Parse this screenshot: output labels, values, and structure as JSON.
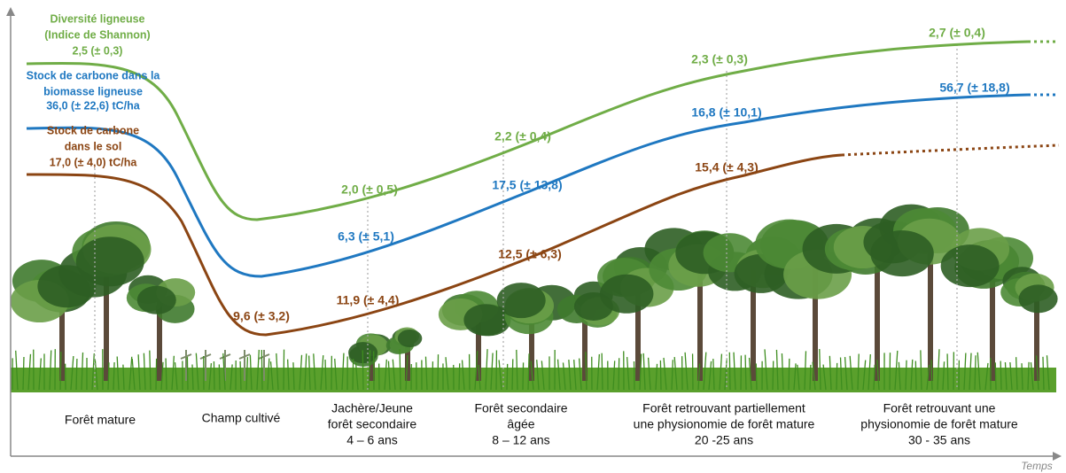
{
  "series": [
    {
      "title": [
        "Diversité ligneuse",
        "(Indice de Shannon)"
      ],
      "color": "#70ad47",
      "labels": [
        "2,5 (± 0,3)",
        "2,0 (± 0,5)",
        "2,2 (± 0,4)",
        "2,3 (± 0,3)",
        "2,7 (± 0,4)"
      ]
    },
    {
      "title": [
        "Stock de carbone dans la",
        "biomasse ligneuse"
      ],
      "color": "#1f78c1",
      "labels": [
        "36,0 (± 22,6) tC/ha",
        "6,3 (± 5,1)",
        "17,5 (± 13,8)",
        "16,8 (± 10,1)",
        "56,7 (± 18,8)"
      ]
    },
    {
      "title": [
        "Stock de carbone",
        "dans le sol"
      ],
      "color": "#8b4513",
      "labels": [
        "17,0 (± 4,0) tC/ha",
        "9,6 (± 3,2)",
        "11,9 (± 4,4)",
        "12,5 (± 6,3)",
        "15,4 (± 4,3)"
      ]
    }
  ],
  "stages": [
    [
      "Forêt mature"
    ],
    [
      "Champ cultivé"
    ],
    [
      "Jachère/Jeune",
      "forêt secondaire",
      "4 – 6 ans"
    ],
    [
      "Forêt secondaire",
      "âgée",
      "8 – 12 ans"
    ],
    [
      "Forêt retrouvant partiellement",
      "une physionomie de forêt mature",
      "20 -25 ans"
    ],
    [
      "Forêt retrouvant une",
      "physionomie de forêt mature",
      "30 - 35 ans"
    ]
  ],
  "axis_label": "Temps"
}
